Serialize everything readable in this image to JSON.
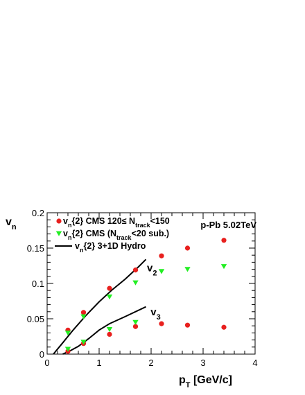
{
  "chart_data": {
    "type": "scatter",
    "annotation": "p-Pb 5.02TeV",
    "xlabel": {
      "main": "p",
      "sub": "T",
      "rest": " [GeV/c]"
    },
    "ylabel": {
      "main": "v",
      "sub": "n"
    },
    "xlim": [
      0,
      4
    ],
    "ylim": [
      0,
      0.2
    ],
    "x_ticks": [
      0,
      1,
      2,
      3,
      4
    ],
    "y_ticks": [
      0,
      0.05,
      0.1,
      0.15,
      0.2
    ],
    "x_tick_labels": [
      "0",
      "1",
      "2",
      "3",
      "4"
    ],
    "y_tick_labels": [
      "0",
      "0.05",
      "0.1",
      "0.15",
      "0.2"
    ],
    "grid": false,
    "legend_position": "top-left",
    "legend": [
      {
        "marker": "circle",
        "color": "#e8201e",
        "parts": [
          [
            "v",
            ""
          ],
          [
            "n",
            "sub"
          ],
          [
            "{2} CMS  120≤ N",
            ""
          ],
          [
            "track",
            "sub"
          ],
          [
            "<150",
            ""
          ]
        ]
      },
      {
        "marker": "triangle-down",
        "color": "#22ee22",
        "parts": [
          [
            "v",
            ""
          ],
          [
            "n",
            "sub"
          ],
          [
            "{2} CMS  (N",
            ""
          ],
          [
            "track",
            "sub"
          ],
          [
            "<20 sub.)",
            ""
          ]
        ]
      },
      {
        "marker": "line",
        "color": "#000000",
        "parts": [
          [
            "v",
            ""
          ],
          [
            "n",
            "sub"
          ],
          [
            "{2}  3+1D Hydro",
            ""
          ]
        ]
      }
    ],
    "curve_labels": [
      {
        "main": "v",
        "sub": "2",
        "x": 1.92,
        "y": 0.117
      },
      {
        "main": "v",
        "sub": "3",
        "x": 1.99,
        "y": 0.055
      }
    ],
    "series": [
      {
        "name": "v2 CMS 120≤Ntrack<150",
        "marker": "circle",
        "color": "#e8201e",
        "x": [
          0.4,
          0.7,
          1.2,
          1.7,
          2.2,
          2.7,
          3.4
        ],
        "y": [
          0.034,
          0.059,
          0.093,
          0.119,
          0.139,
          0.15,
          0.161
        ]
      },
      {
        "name": "v3 CMS 120≤Ntrack<150",
        "marker": "circle",
        "color": "#e8201e",
        "x": [
          0.4,
          0.7,
          1.2,
          1.7,
          2.2,
          2.7,
          3.4
        ],
        "y": [
          0.004,
          0.015,
          0.028,
          0.039,
          0.043,
          0.041,
          0.038
        ]
      },
      {
        "name": "v2 CMS (Ntrack<20 sub.)",
        "marker": "triangle-down",
        "color": "#22ee22",
        "x": [
          0.4,
          0.7,
          1.2,
          1.7,
          2.2,
          2.7,
          3.4
        ],
        "y": [
          0.03,
          0.053,
          0.081,
          0.101,
          0.117,
          0.12,
          0.124
        ]
      },
      {
        "name": "v3 CMS (Ntrack<20 sub.)",
        "marker": "triangle-down",
        "color": "#22ee22",
        "x": [
          0.4,
          0.7,
          1.2,
          1.7
        ],
        "y": [
          0.007,
          0.017,
          0.035,
          0.045
        ]
      },
      {
        "name": "v2 3+1D Hydro",
        "marker": "line",
        "color": "#000000",
        "x": [
          0.12,
          0.3,
          0.5,
          0.75,
          1.0,
          1.25,
          1.5,
          1.75,
          1.9
        ],
        "y": [
          0.0,
          0.016,
          0.034,
          0.055,
          0.074,
          0.091,
          0.106,
          0.123,
          0.134
        ]
      },
      {
        "name": "v3 3+1D Hydro",
        "marker": "line",
        "color": "#000000",
        "x": [
          0.3,
          0.45,
          0.6,
          0.8,
          1.0,
          1.2,
          1.5,
          1.9
        ],
        "y": [
          0.0,
          0.005,
          0.011,
          0.022,
          0.034,
          0.043,
          0.053,
          0.067
        ]
      }
    ]
  }
}
